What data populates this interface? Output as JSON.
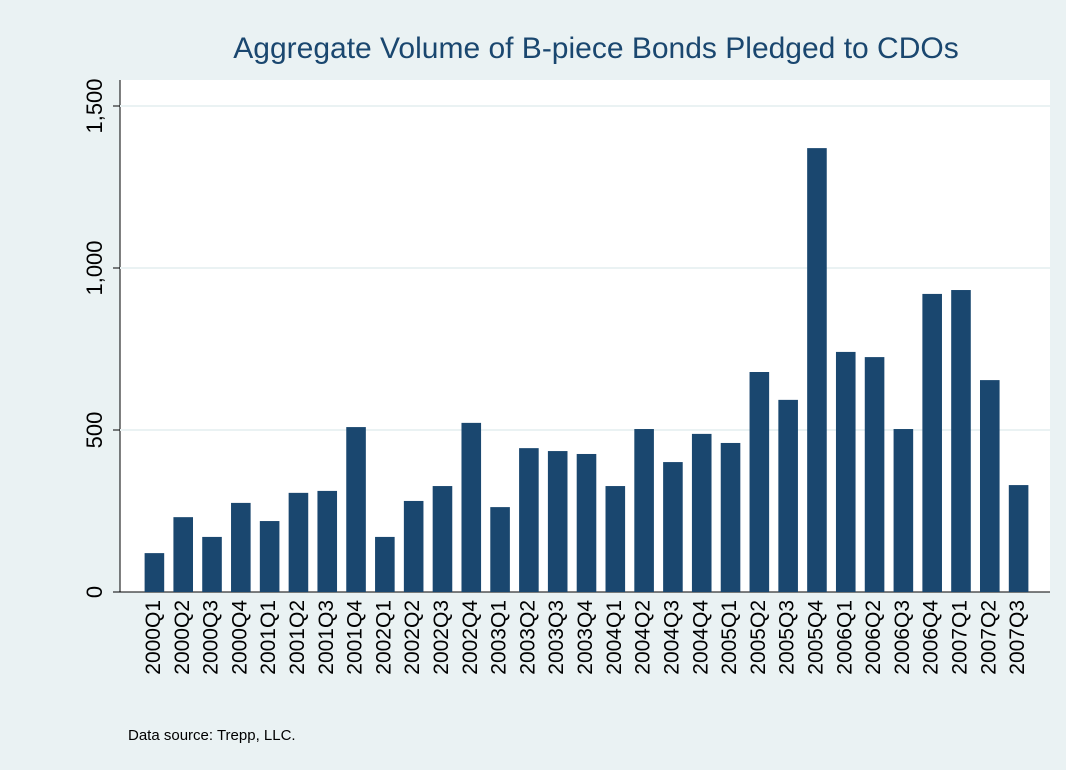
{
  "chart_data": {
    "type": "bar",
    "title": "Aggregate Volume of B-piece Bonds Pledged to CDOs",
    "note": "Data source: Trepp, LLC.",
    "categories": [
      "2000Q1",
      "2000Q2",
      "2000Q3",
      "2000Q4",
      "2001Q1",
      "2001Q2",
      "2001Q3",
      "2001Q4",
      "2002Q1",
      "2002Q2",
      "2002Q3",
      "2002Q4",
      "2003Q1",
      "2003Q2",
      "2003Q3",
      "2003Q4",
      "2004Q1",
      "2004Q2",
      "2004Q3",
      "2004Q4",
      "2005Q1",
      "2005Q2",
      "2005Q3",
      "2005Q4",
      "2006Q1",
      "2006Q2",
      "2006Q3",
      "2006Q4",
      "2007Q1",
      "2007Q2",
      "2007Q3"
    ],
    "values": [
      120,
      231,
      170,
      275,
      219,
      306,
      312,
      509,
      170,
      281,
      327,
      522,
      262,
      444,
      435,
      426,
      327,
      503,
      401,
      488,
      460,
      679,
      593,
      1370,
      741,
      725,
      503,
      920,
      932,
      654,
      330
    ],
    "color": "#1a476f",
    "ylim": [
      0,
      1500
    ],
    "yticks": [
      0,
      500,
      {
        "value": 1000,
        "label": "1,000"
      },
      {
        "value": 1500,
        "label": "1,500"
      }
    ],
    "grid": true
  }
}
